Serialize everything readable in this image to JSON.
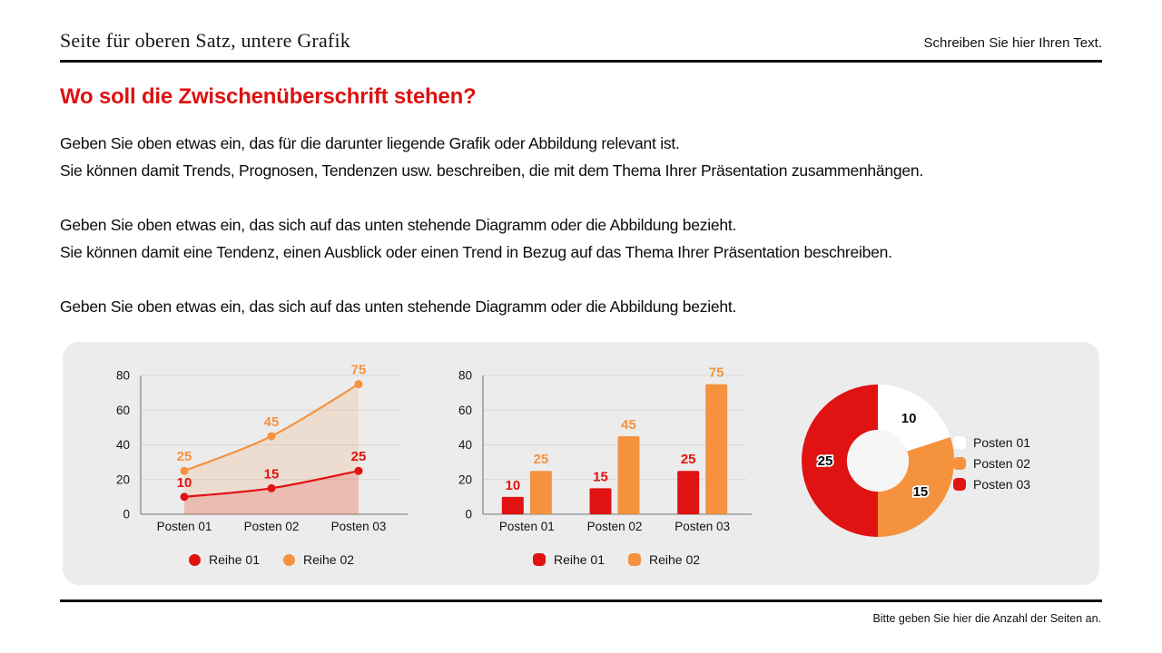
{
  "header": {
    "title": "Seite für oberen Satz, untere Grafik",
    "right_text": "Schreiben Sie hier Ihren Text."
  },
  "heading": {
    "text": "Wo soll die Zwischenüberschrift stehen?",
    "color": "#dd1111"
  },
  "paragraphs": {
    "p1_l1": "Geben Sie oben etwas ein, das für die darunter liegende Grafik oder Abbildung relevant ist.",
    "p1_l2": "Sie können damit Trends, Prognosen, Tendenzen usw. beschreiben, die mit dem Thema Ihrer Präsentation zusammenhängen.",
    "p2_l1": "Geben Sie oben etwas ein, das sich auf das unten stehende Diagramm oder die Abbildung bezieht.",
    "p2_l2": "Sie können damit eine Tendenz, einen Ausblick oder einen Trend in Bezug auf das Thema Ihrer Präsentation beschreiben.",
    "p3_l1": "Geben Sie oben etwas ein, das sich auf das unten stehende Diagramm oder die Abbildung bezieht."
  },
  "footer": {
    "note": "Bitte geben Sie hier die Anzahl der Seiten an."
  },
  "colors": {
    "red": "#e01212",
    "orange": "#f5923e",
    "heading_red": "#dd1111",
    "panel_bg": "#ececec",
    "grid": "#d7d7d7",
    "axis": "#9c9c9c",
    "tick_text": "#141414",
    "donut_hole": "#f7f6f6",
    "white_slice": "#ffffff"
  },
  "chart_data": [
    {
      "type": "line",
      "title": "",
      "categories": [
        "Posten 01",
        "Posten 02",
        "Posten 03"
      ],
      "series": [
        {
          "name": "Reihe 01",
          "values": [
            10,
            15,
            25
          ],
          "color": "#e01212"
        },
        {
          "name": "Reihe 02",
          "values": [
            25,
            45,
            75
          ],
          "color": "#f5923e"
        }
      ],
      "ylim": [
        0,
        80
      ],
      "yticks": [
        0,
        20,
        40,
        60,
        80
      ],
      "grid": true,
      "area_fill": true,
      "data_labels": true,
      "legend_position": "bottom"
    },
    {
      "type": "bar",
      "title": "",
      "categories": [
        "Posten 01",
        "Posten 02",
        "Posten 03"
      ],
      "series": [
        {
          "name": "Reihe 01",
          "values": [
            10,
            15,
            25
          ],
          "color": "#e01212"
        },
        {
          "name": "Reihe 02",
          "values": [
            25,
            45,
            75
          ],
          "color": "#f5923e"
        }
      ],
      "ylim": [
        0,
        80
      ],
      "yticks": [
        0,
        20,
        40,
        60,
        80
      ],
      "grid": true,
      "data_labels": true,
      "legend_position": "bottom"
    },
    {
      "type": "pie",
      "donut": true,
      "title": "",
      "categories": [
        "Posten 01",
        "Posten 02",
        "Posten 03"
      ],
      "values": [
        10,
        15,
        25
      ],
      "colors": [
        "#ffffff",
        "#f5923e",
        "#e01212"
      ],
      "data_labels": true,
      "legend_position": "right"
    }
  ]
}
